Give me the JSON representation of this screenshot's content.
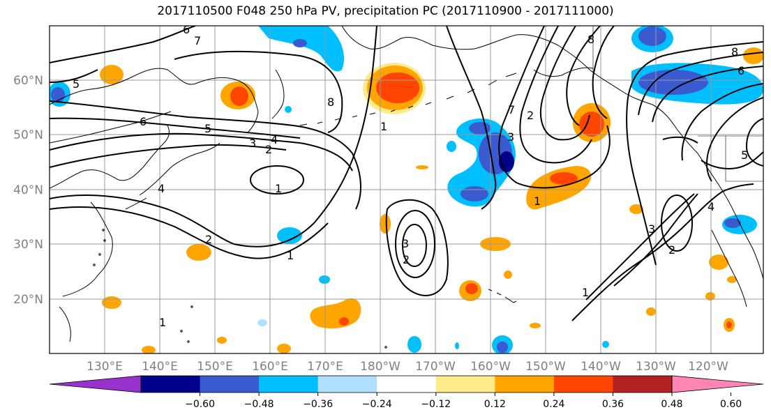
{
  "title": "2017110500 F048 250 hPa PV, precipitation PC (2017110900 - 2017111000)",
  "lon_labels": [
    "130°E",
    "140°E",
    "150°E",
    "160°E",
    "170°E",
    "180°W",
    "170°W",
    "160°W",
    "150°W",
    "140°W",
    "130°W",
    "120°W"
  ],
  "lat_labels": [
    "60°N",
    "50°N",
    "40°N",
    "30°N",
    "20°N"
  ],
  "colorbar": {
    "ticks": [
      "−0.60",
      "−0.48",
      "−0.36",
      "−0.24",
      "−0.12",
      "0.12",
      "0.24",
      "0.36",
      "0.48",
      "0.60"
    ],
    "colors": [
      "#9932cc",
      "#00008b",
      "#3a5bd0",
      "#00bfff",
      "#b0e0ff",
      "#ffffff",
      "#ffeb8a",
      "#ffa500",
      "#ff4500",
      "#b22222",
      "#ff86b4"
    ]
  },
  "contour_labels": [
    "6",
    "7",
    "5",
    "6",
    "5",
    "4",
    "3",
    "2",
    "1",
    "8",
    "1",
    "2",
    "4",
    "3",
    "2",
    "1",
    "8",
    "7",
    "3",
    "2",
    "1",
    "1",
    "2",
    "3",
    "4",
    "8",
    "6",
    "5",
    "1"
  ],
  "colors": {
    "pos_light": "#ffeb8a",
    "pos_mid": "#ffa500",
    "pos_strong": "#ff4500",
    "neg_light": "#b0e0ff",
    "neg_mid": "#00bfff",
    "neg_strong": "#3a5bd0",
    "neg_max": "#00008b"
  }
}
